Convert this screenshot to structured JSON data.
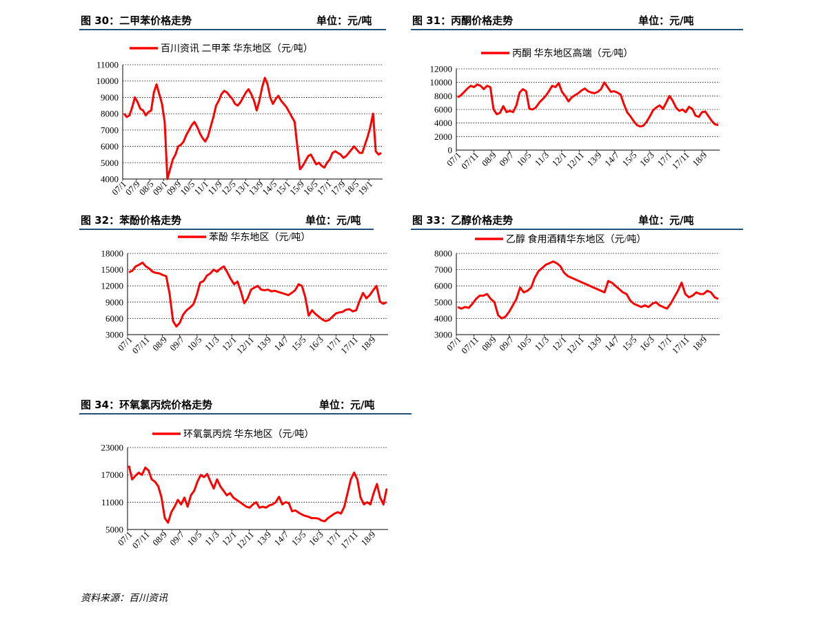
{
  "source": "资料来源：百川资讯",
  "series_color": "#ff0000",
  "header_rule_color": "#1f4e79",
  "chart_data": [
    {
      "id": "c30",
      "type": "line",
      "header_title": "图 30：二甲苯价格走势",
      "unit": "单位：元/吨",
      "series": [
        {
          "name": "百川资讯 二甲苯 华东地区（元/吨）",
          "values": [
            8000,
            7800,
            7900,
            8400,
            9000,
            8700,
            8300,
            8200,
            7900,
            8100,
            8200,
            9300,
            9800,
            9200,
            8600,
            7500,
            4000,
            4600,
            5200,
            5500,
            6000,
            6100,
            6300,
            6700,
            7000,
            7300,
            7500,
            7200,
            6800,
            6500,
            6300,
            6600,
            7200,
            7800,
            8500,
            8800,
            9200,
            9400,
            9300,
            9100,
            8900,
            8600,
            8500,
            8700,
            9000,
            9300,
            9500,
            9200,
            8800,
            8200,
            8800,
            9600,
            10200,
            9800,
            9000,
            8600,
            8900,
            9100,
            8800,
            8600,
            8400,
            8100,
            7800,
            7500,
            6000,
            4600,
            4800,
            5100,
            5400,
            5500,
            5200,
            4900,
            5000,
            4800,
            4700,
            5000,
            5200,
            5600,
            5700,
            5600,
            5500,
            5300,
            5400,
            5600,
            5800,
            6000,
            5800,
            5600,
            5600,
            6100,
            6600,
            7200,
            8000,
            5700,
            5500,
            5600
          ]
        }
      ],
      "x_ticks": [
        "07/1",
        "07/9",
        "08/5",
        "09/1",
        "09/9",
        "10/5",
        "11/1",
        "11/9",
        "12/5",
        "13/1",
        "13/9",
        "14/5",
        "15/1",
        "15/9",
        "16/5",
        "17/1",
        "17/9",
        "18/5",
        "19/1"
      ],
      "y_ticks": [
        "4000",
        "5000",
        "6000",
        "7000",
        "8000",
        "9000",
        "10000",
        "11000"
      ],
      "ylim": [
        4000,
        11000
      ]
    },
    {
      "id": "c31",
      "type": "line",
      "header_title": "图 31：丙酮价格走势",
      "unit": "单位：元/吨",
      "series": [
        {
          "name": "丙酮 华东地区高端（元/吨）",
          "values": [
            7800,
            8100,
            8600,
            9100,
            9500,
            9300,
            9700,
            9500,
            9000,
            9500,
            9300,
            6000,
            5300,
            5500,
            6500,
            5600,
            5800,
            5600,
            6600,
            8500,
            9000,
            8700,
            6100,
            6000,
            6300,
            7000,
            7500,
            8000,
            8700,
            9500,
            9300,
            9900,
            8600,
            8000,
            7200,
            7800,
            8100,
            8400,
            8800,
            9100,
            8700,
            8500,
            8400,
            8600,
            9000,
            10000,
            9300,
            8600,
            8700,
            8500,
            8200,
            6800,
            5600,
            5000,
            4300,
            3700,
            3500,
            3600,
            4200,
            5000,
            5900,
            6300,
            6600,
            6100,
            7000,
            8000,
            7300,
            6300,
            5800,
            6000,
            5600,
            6400,
            6100,
            5100,
            4900,
            5600,
            5700,
            5000,
            4300,
            3800,
            3700
          ]
        }
      ],
      "x_ticks": [
        "07/1",
        "07/11",
        "08/9",
        "09/7",
        "10/5",
        "11/3",
        "12/1",
        "12/11",
        "13/9",
        "14/7",
        "15/5",
        "16/3",
        "17/1",
        "17/11",
        "18/9"
      ],
      "y_ticks": [
        "0",
        "2000",
        "4000",
        "6000",
        "8000",
        "10000",
        "12000"
      ],
      "ylim": [
        0,
        12000
      ]
    },
    {
      "id": "c32",
      "type": "line",
      "header_title": "图 32：苯酚价格走势",
      "unit": "单位：元/吨",
      "series": [
        {
          "name": "苯酚 华东地区（元/吨）",
          "values": [
            14500,
            14800,
            15600,
            15900,
            16300,
            15600,
            15200,
            14600,
            14400,
            14300,
            14000,
            13800,
            10500,
            5500,
            4500,
            5200,
            6700,
            7500,
            8000,
            8600,
            10300,
            12600,
            12900,
            13900,
            14300,
            15000,
            14600,
            15200,
            15600,
            14500,
            13300,
            12300,
            12800,
            11000,
            8800,
            9700,
            11300,
            11700,
            12000,
            11300,
            11200,
            11300,
            11000,
            11100,
            10900,
            10700,
            10500,
            10300,
            10700,
            11200,
            12300,
            12000,
            9900,
            6500,
            7500,
            6800,
            6300,
            5800,
            5500,
            5700,
            6300,
            6900,
            7100,
            7200,
            7600,
            7700,
            7300,
            7500,
            9200,
            10700,
            9700,
            10300,
            11200,
            12000,
            9100,
            8700,
            9000
          ]
        }
      ],
      "x_ticks": [
        "07/1",
        "07/11",
        "08/9",
        "09/7",
        "10/5",
        "11/3",
        "12/1",
        "12/11",
        "13/9",
        "14/7",
        "15/5",
        "16/3",
        "17/1",
        "17/11",
        "18/9"
      ],
      "y_ticks": [
        "3000",
        "6000",
        "9000",
        "12000",
        "15000",
        "18000"
      ],
      "ylim": [
        3000,
        18000
      ]
    },
    {
      "id": "c33",
      "type": "line",
      "header_title": "图 33：乙醇价格走势",
      "unit": "单位：元/吨",
      "series": [
        {
          "name": "乙醇 食用酒精华东地区（元/吨）",
          "values": [
            4700,
            4600,
            4700,
            4650,
            4900,
            5200,
            5400,
            5400,
            5500,
            5200,
            5000,
            4200,
            4000,
            4100,
            4400,
            4800,
            5200,
            5900,
            5600,
            5700,
            5900,
            6500,
            6900,
            7100,
            7300,
            7400,
            7500,
            7400,
            7200,
            6800,
            6600,
            6500,
            6400,
            6300,
            6200,
            6100,
            6000,
            5900,
            5800,
            5700,
            5600,
            6300,
            6200,
            6000,
            5800,
            5600,
            5500,
            5100,
            4900,
            4800,
            4700,
            4800,
            4700,
            4900,
            5000,
            4800,
            4700,
            4600,
            4900,
            5300,
            5700,
            6200,
            5500,
            5300,
            5400,
            5600,
            5500,
            5500,
            5700,
            5600,
            5300,
            5200
          ]
        }
      ],
      "x_ticks": [
        "07/1",
        "07/11",
        "08/9",
        "09/7",
        "10/5",
        "11/3",
        "12/1",
        "12/11",
        "13/9",
        "14/7",
        "15/5",
        "16/3",
        "17/1",
        "17/11",
        "18/9"
      ],
      "y_ticks": [
        "3000",
        "4000",
        "5000",
        "6000",
        "7000",
        "8000"
      ],
      "ylim": [
        3000,
        8000
      ]
    },
    {
      "id": "c34",
      "type": "line",
      "header_title": "图 34：环氧氯丙烷价格走势",
      "unit": "单位：元/吨",
      "series": [
        {
          "name": "环氧氯丙烷 华东地区（元/吨）",
          "values": [
            19000,
            16000,
            16800,
            17500,
            17000,
            18600,
            18000,
            16000,
            15500,
            14500,
            12000,
            7500,
            6500,
            8800,
            10000,
            11500,
            10500,
            12000,
            10000,
            12500,
            13500,
            15500,
            17000,
            16500,
            17200,
            15500,
            14000,
            16000,
            14500,
            13500,
            12500,
            13000,
            12000,
            11500,
            11000,
            10500,
            10000,
            9800,
            10500,
            11000,
            9800,
            10000,
            9800,
            10300,
            10500,
            11000,
            12200,
            10500,
            11000,
            10800,
            9000,
            9200,
            8700,
            8300,
            8000,
            7800,
            7500,
            7500,
            7400,
            7000,
            6800,
            7500,
            8000,
            8500,
            8800,
            8500,
            10000,
            13000,
            16000,
            17500,
            16000,
            12000,
            10500,
            11000,
            10500,
            13000,
            15000,
            12000,
            10500,
            14000
          ]
        }
      ],
      "x_ticks": [
        "07/1",
        "07/11",
        "08/9",
        "09/7",
        "10/5",
        "11/3",
        "12/1",
        "12/11",
        "13/9",
        "14/7",
        "15/5",
        "16/3",
        "17/1",
        "17/11",
        "18/9"
      ],
      "y_ticks": [
        "5000",
        "11000",
        "17000",
        "23000"
      ],
      "ylim": [
        5000,
        23000
      ]
    }
  ]
}
